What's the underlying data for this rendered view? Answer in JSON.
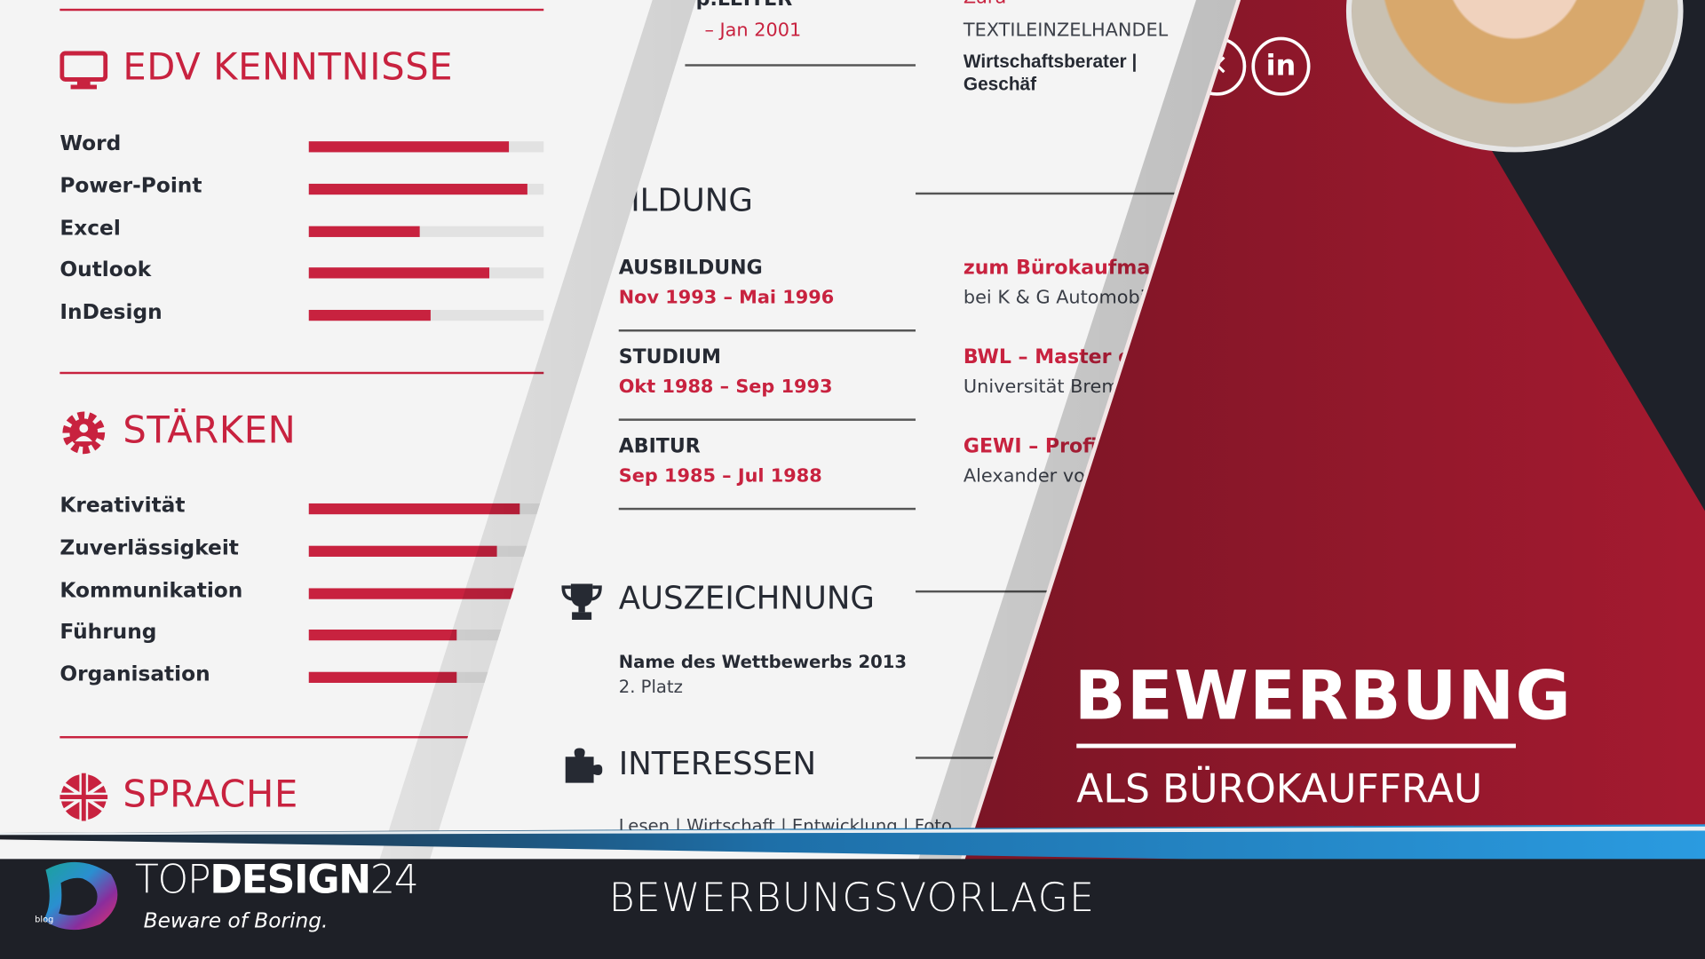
{
  "left_page": {
    "edv": {
      "title": "EDV KENNTNISSE",
      "icon": "monitor-icon",
      "skills": [
        {
          "label": "Word",
          "level": 0.85
        },
        {
          "label": "Power-Point",
          "level": 0.93
        },
        {
          "label": "Excel",
          "level": 0.47
        },
        {
          "label": "Outlook",
          "level": 0.77
        },
        {
          "label": "InDesign",
          "level": 0.52
        }
      ]
    },
    "staerken": {
      "title": "STÄRKEN",
      "icon": "gear-person-icon",
      "skills": [
        {
          "label": "Kreativität",
          "level": 0.9
        },
        {
          "label": "Zuverlässigkeit",
          "level": 0.8
        },
        {
          "label": "Kommunikation",
          "level": 0.88
        },
        {
          "label": "Führung",
          "level": 0.63
        },
        {
          "label": "Organisation",
          "level": 0.63
        }
      ]
    },
    "sprache": {
      "title": "SPRACHE",
      "icon": "uk-flag-icon"
    }
  },
  "middle_page": {
    "top_job": {
      "title": "p.LEITER",
      "date": "– Jan 2001",
      "company": "Zara",
      "sector": "TEXTILEINZELHANDEL",
      "role": "Wirtschaftsberater | Geschäf"
    },
    "bildung": {
      "title": "ILDUNG",
      "items": [
        {
          "title": "AUSBILDUNG",
          "date": "Nov 1993 – Mai 1996",
          "degree": "zum Bürokaufmann",
          "place": "bei K & G Automobili"
        },
        {
          "title": "STUDIUM",
          "date": "Okt 1988 – Sep 1993",
          "degree": "BWL – Master o",
          "place": "Universität Brem"
        },
        {
          "title": "ABITUR",
          "date": "Sep 1985 – Jul 1988",
          "degree": "GEWI – Profi",
          "place": "Alexander vor"
        }
      ]
    },
    "auszeichnung": {
      "title": "AUSZEICHNUNG",
      "icon": "trophy-icon",
      "name": "Name des Wettbewerbs 2013",
      "place": "2. Platz"
    },
    "interessen": {
      "title": "INTERESSEN",
      "icon": "puzzle-icon",
      "text": "Lesen | Wirtschaft | Entwicklung | Foto"
    }
  },
  "cover": {
    "title": "BEWERBUNG",
    "subtitle": "ALS BÜROKAUFFRAU",
    "social": [
      "xing-icon",
      "linkedin-icon"
    ],
    "linkedin_label": "in"
  },
  "banner": {
    "brand_top": "TOP",
    "brand_design": "DESIGN",
    "brand_num": "24",
    "tagline_a": "Beware of ",
    "tagline_b": "Boring.",
    "blog": "blog",
    "caption": "BEWERBUNGSVORLAGE"
  },
  "colors": {
    "accent": "#c8223f",
    "dark": "#1e2027",
    "cover_dark": "#3e0f17",
    "stripe": "#2a9be0"
  }
}
